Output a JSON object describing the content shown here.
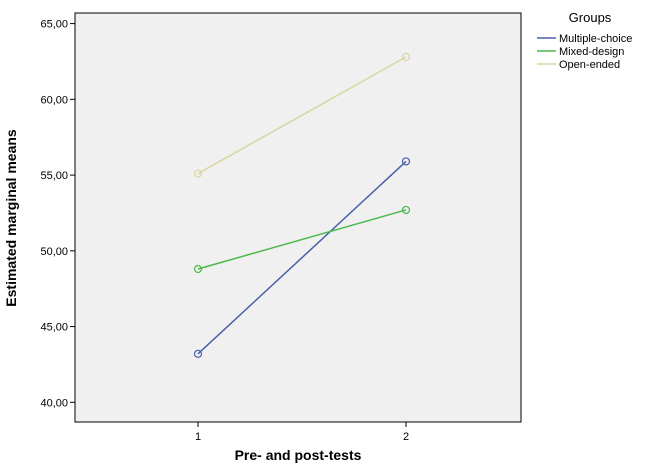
{
  "chart_data": {
    "type": "line",
    "xlabel": "Pre- and post-tests",
    "ylabel": "Estimated marginal means",
    "categories": [
      "1",
      "2"
    ],
    "ylim": [
      38.7,
      65.7
    ],
    "yticks": [
      40,
      45,
      50,
      55,
      60,
      65
    ],
    "ytick_labels": [
      "40,00",
      "45,00",
      "50,00",
      "55,00",
      "60,00",
      "65,00"
    ],
    "grid": false,
    "legend": {
      "title": "Groups",
      "placement": "right"
    },
    "series": [
      {
        "name": "Multiple-choice",
        "values": [
          43.2,
          55.9
        ],
        "color": "#4a5fa8"
      },
      {
        "name": "Mixed-design",
        "values": [
          48.8,
          52.7
        ],
        "color": "#4cb94c"
      },
      {
        "name": "Open-ended",
        "values": [
          55.1,
          62.8
        ],
        "color": "#d8d6a2"
      }
    ]
  }
}
